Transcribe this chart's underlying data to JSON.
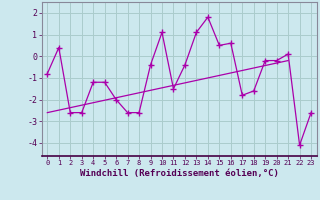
{
  "x": [
    0,
    1,
    2,
    3,
    4,
    5,
    6,
    7,
    8,
    9,
    10,
    11,
    12,
    13,
    14,
    15,
    16,
    17,
    18,
    19,
    20,
    21,
    22,
    23
  ],
  "y_line": [
    -0.8,
    0.4,
    -2.6,
    -2.6,
    -1.2,
    -1.2,
    -2.0,
    -2.6,
    -2.6,
    -0.4,
    1.1,
    -1.5,
    -0.4,
    1.1,
    1.8,
    0.5,
    0.6,
    -1.8,
    -1.6,
    -0.2,
    -0.2,
    0.1,
    -4.1,
    -2.6
  ],
  "y_trend_x": [
    0,
    21
  ],
  "y_trend_y": [
    -2.6,
    -0.2
  ],
  "line_color": "#aa00aa",
  "bg_color": "#cce8ee",
  "grid_color": "#aacccc",
  "xlabel": "Windchill (Refroidissement éolien,°C)",
  "ylim": [
    -4.6,
    2.5
  ],
  "xlim": [
    -0.5,
    23.5
  ],
  "yticks": [
    -4,
    -3,
    -2,
    -1,
    0,
    1,
    2
  ],
  "xticks": [
    0,
    1,
    2,
    3,
    4,
    5,
    6,
    7,
    8,
    9,
    10,
    11,
    12,
    13,
    14,
    15,
    16,
    17,
    18,
    19,
    20,
    21,
    22,
    23
  ]
}
